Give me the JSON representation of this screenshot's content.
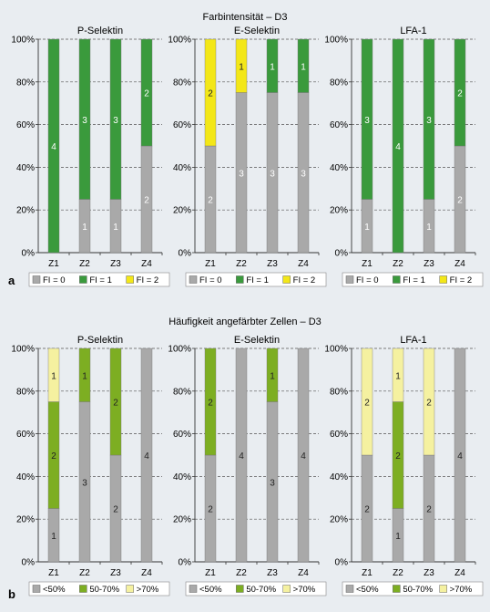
{
  "section_a": {
    "panel_label": "a",
    "heading": "Farbintensität – D3",
    "legend": [
      {
        "label": "FI = 0",
        "color": "#a9a9a9"
      },
      {
        "label": "FI = 1",
        "color": "#3a9a3c"
      },
      {
        "label": "FI = 2",
        "color": "#f3e718"
      }
    ]
  },
  "section_b": {
    "panel_label": "b",
    "heading": "Häufigkeit angefärbter Zellen – D3",
    "legend": [
      {
        "label": "<50%",
        "color": "#a9a9a9"
      },
      {
        "label": "50-70%",
        "color": "#7dae22"
      },
      {
        "label": ">70%",
        "color": "#f5f1a0"
      }
    ]
  },
  "chart_data": [
    {
      "type": "bar",
      "stacked": true,
      "section": "a",
      "title": "P-Selektin",
      "categories": [
        "Z1",
        "Z2",
        "Z3",
        "Z4"
      ],
      "yticks": [
        "0%",
        "20%",
        "40%",
        "60%",
        "80%",
        "100%"
      ],
      "ylim": [
        0,
        100
      ],
      "series": [
        {
          "name": "FI = 0",
          "color": "#a9a9a9",
          "values": [
            0,
            25,
            25,
            50
          ],
          "labels": [
            "",
            "1",
            "1",
            "2"
          ]
        },
        {
          "name": "FI = 1",
          "color": "#3a9a3c",
          "values": [
            100,
            75,
            75,
            50
          ],
          "labels": [
            "4",
            "3",
            "3",
            "2"
          ]
        },
        {
          "name": "FI = 2",
          "color": "#f3e718",
          "values": [
            0,
            0,
            0,
            0
          ],
          "labels": [
            "",
            "",
            "",
            ""
          ]
        }
      ]
    },
    {
      "type": "bar",
      "stacked": true,
      "section": "a",
      "title": "E-Selektin",
      "categories": [
        "Z1",
        "Z2",
        "Z3",
        "Z4"
      ],
      "yticks": [
        "0%",
        "20%",
        "40%",
        "60%",
        "80%",
        "100%"
      ],
      "ylim": [
        0,
        100
      ],
      "series": [
        {
          "name": "FI = 0",
          "color": "#a9a9a9",
          "values": [
            50,
            75,
            75,
            75
          ],
          "labels": [
            "2",
            "3",
            "3",
            "3"
          ]
        },
        {
          "name": "FI = 1",
          "color": "#3a9a3c",
          "values": [
            0,
            0,
            25,
            25
          ],
          "labels": [
            "",
            "",
            "1",
            "1"
          ]
        },
        {
          "name": "FI = 2",
          "color": "#f3e718",
          "values": [
            50,
            25,
            0,
            0
          ],
          "labels": [
            "2",
            "1",
            "",
            ""
          ]
        }
      ]
    },
    {
      "type": "bar",
      "stacked": true,
      "section": "a",
      "title": "LFA-1",
      "categories": [
        "Z1",
        "Z2",
        "Z3",
        "Z4"
      ],
      "yticks": [
        "0%",
        "20%",
        "40%",
        "60%",
        "80%",
        "100%"
      ],
      "ylim": [
        0,
        100
      ],
      "series": [
        {
          "name": "FI = 0",
          "color": "#a9a9a9",
          "values": [
            25,
            0,
            25,
            50
          ],
          "labels": [
            "1",
            "",
            "1",
            "2"
          ]
        },
        {
          "name": "FI = 1",
          "color": "#3a9a3c",
          "values": [
            75,
            100,
            75,
            50
          ],
          "labels": [
            "3",
            "4",
            "3",
            "2"
          ]
        },
        {
          "name": "FI = 2",
          "color": "#f3e718",
          "values": [
            0,
            0,
            0,
            0
          ],
          "labels": [
            "",
            "",
            "",
            ""
          ]
        }
      ]
    },
    {
      "type": "bar",
      "stacked": true,
      "section": "b",
      "title": "P-Selektin",
      "categories": [
        "Z1",
        "Z2",
        "Z3",
        "Z4"
      ],
      "yticks": [
        "0%",
        "20%",
        "40%",
        "60%",
        "80%",
        "100%"
      ],
      "ylim": [
        0,
        100
      ],
      "series": [
        {
          "name": "<50%",
          "color": "#a9a9a9",
          "values": [
            25,
            75,
            50,
            100
          ],
          "labels": [
            "1",
            "3",
            "2",
            "4"
          ]
        },
        {
          "name": "50-70%",
          "color": "#7dae22",
          "values": [
            50,
            25,
            50,
            0
          ],
          "labels": [
            "2",
            "1",
            "2",
            ""
          ]
        },
        {
          "name": ">70%",
          "color": "#f5f1a0",
          "values": [
            25,
            0,
            0,
            0
          ],
          "labels": [
            "1",
            "",
            "",
            ""
          ]
        }
      ]
    },
    {
      "type": "bar",
      "stacked": true,
      "section": "b",
      "title": "E-Selektin",
      "categories": [
        "Z1",
        "Z2",
        "Z3",
        "Z4"
      ],
      "yticks": [
        "0%",
        "20%",
        "40%",
        "60%",
        "80%",
        "100%"
      ],
      "ylim": [
        0,
        100
      ],
      "series": [
        {
          "name": "<50%",
          "color": "#a9a9a9",
          "values": [
            50,
            100,
            75,
            100
          ],
          "labels": [
            "2",
            "4",
            "3",
            "4"
          ]
        },
        {
          "name": "50-70%",
          "color": "#7dae22",
          "values": [
            50,
            0,
            25,
            0
          ],
          "labels": [
            "2",
            "",
            "1",
            ""
          ]
        },
        {
          "name": ">70%",
          "color": "#f5f1a0",
          "values": [
            0,
            0,
            0,
            0
          ],
          "labels": [
            "",
            "",
            "",
            ""
          ]
        }
      ]
    },
    {
      "type": "bar",
      "stacked": true,
      "section": "b",
      "title": "LFA-1",
      "categories": [
        "Z1",
        "Z2",
        "Z3",
        "Z4"
      ],
      "yticks": [
        "0%",
        "20%",
        "40%",
        "60%",
        "80%",
        "100%"
      ],
      "ylim": [
        0,
        100
      ],
      "series": [
        {
          "name": "<50%",
          "color": "#a9a9a9",
          "values": [
            50,
            25,
            50,
            100
          ],
          "labels": [
            "2",
            "1",
            "2",
            "4"
          ]
        },
        {
          "name": "50-70%",
          "color": "#7dae22",
          "values": [
            0,
            50,
            0,
            0
          ],
          "labels": [
            "",
            "2",
            "",
            ""
          ]
        },
        {
          "name": ">70%",
          "color": "#f5f1a0",
          "values": [
            50,
            25,
            50,
            0
          ],
          "labels": [
            "2",
            "1",
            "2",
            ""
          ]
        }
      ]
    }
  ]
}
